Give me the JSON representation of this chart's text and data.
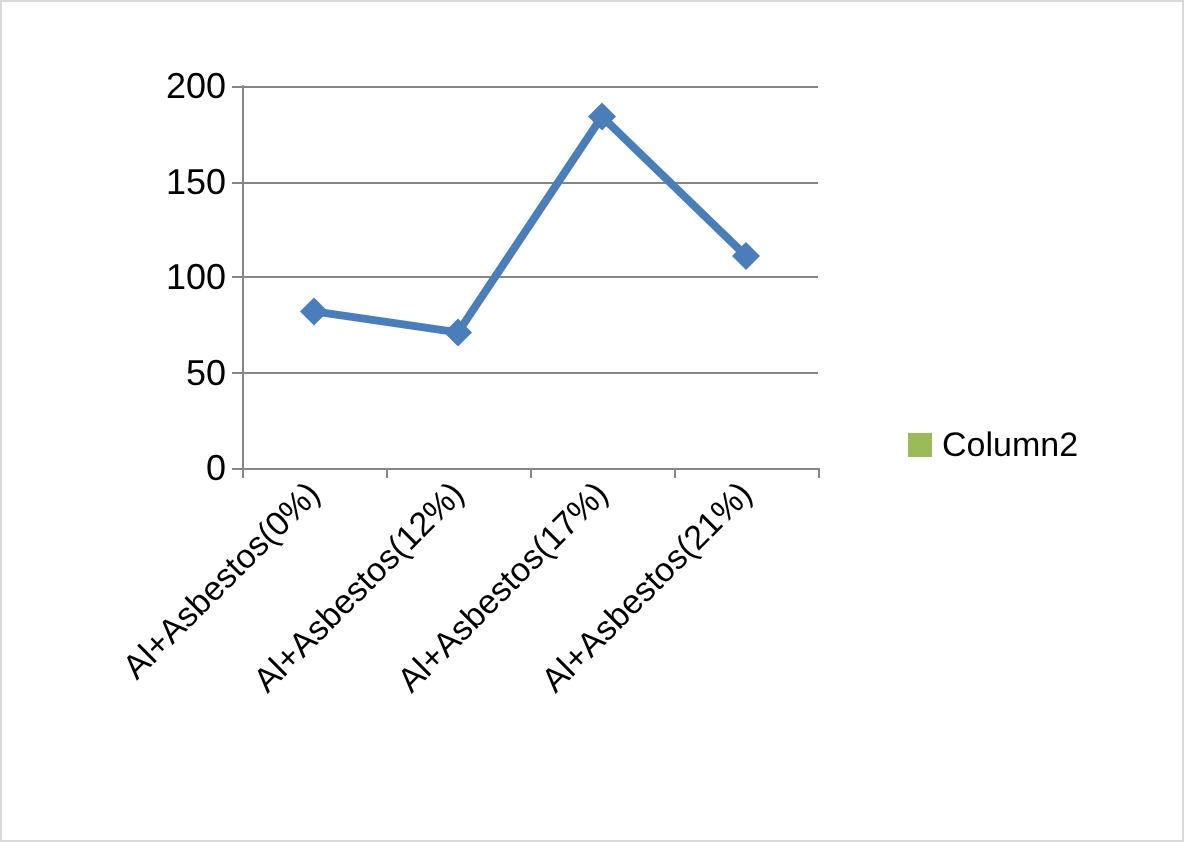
{
  "chart_data": {
    "type": "line",
    "categories": [
      "Al+Asbestos(0%)",
      "Al+Asbestos(12%)",
      "Al+Asbestos(17%)",
      "Al+Asbestos(21%)"
    ],
    "series": [
      {
        "color": "#4a7ebb",
        "values": [
          82,
          71,
          184,
          111
        ]
      },
      {
        "name": "Column2",
        "type": "bar",
        "color": "#9bbb59",
        "values": [
          null,
          null,
          null,
          null
        ]
      }
    ],
    "ylim": [
      0,
      200
    ],
    "yticks": [
      0,
      50,
      100,
      150,
      200
    ],
    "grid": "y",
    "legend": "right",
    "marker": "diamond",
    "line_style": "solid"
  }
}
